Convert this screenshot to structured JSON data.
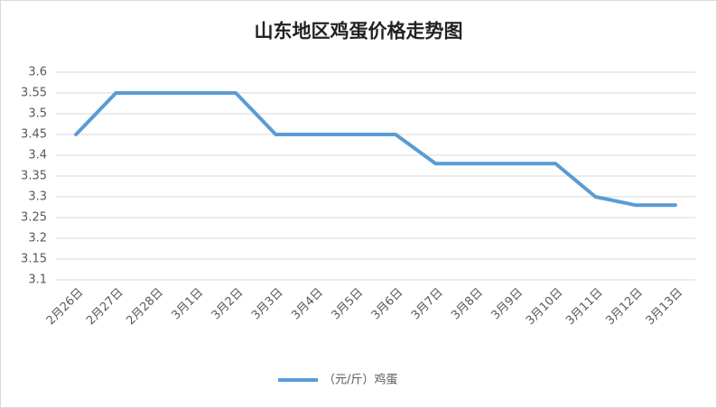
{
  "chart_data": {
    "type": "line",
    "title": "山东地区鸡蛋价格走势图",
    "categories": [
      "2月26日",
      "2月27日",
      "2月28日",
      "3月1日",
      "3月2日",
      "3月3日",
      "3月4日",
      "3月5日",
      "3月6日",
      "3月7日",
      "3月8日",
      "3月9日",
      "3月10日",
      "3月11日",
      "3月12日",
      "3月13日"
    ],
    "series": [
      {
        "name": "（元/斤）鸡蛋",
        "color": "#5b9bd5",
        "values": [
          3.45,
          3.55,
          3.55,
          3.55,
          3.55,
          3.45,
          3.45,
          3.45,
          3.45,
          3.38,
          3.38,
          3.38,
          3.38,
          3.3,
          3.28,
          3.28
        ]
      }
    ],
    "ylim": [
      3.1,
      3.6
    ],
    "yticks": [
      3.1,
      3.15,
      3.2,
      3.25,
      3.3,
      3.35,
      3.4,
      3.45,
      3.5,
      3.55,
      3.6
    ],
    "grid": true,
    "legend": "bottom"
  }
}
